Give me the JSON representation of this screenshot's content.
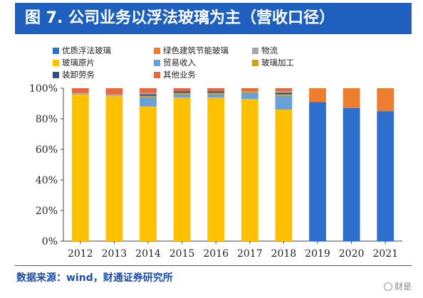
{
  "title": "图 7. 公司业务以浮法玻璃为主（营收口径）",
  "source": "数据来源：wind，财通证券研究所",
  "watermark": "财是",
  "chart_data": {
    "type": "bar",
    "stacked": true,
    "categories": [
      "2012",
      "2013",
      "2014",
      "2015",
      "2016",
      "2017",
      "2018",
      "2019",
      "2020",
      "2021"
    ],
    "ylim": [
      0,
      100
    ],
    "yticks": [
      "0%",
      "20%",
      "40%",
      "60%",
      "80%",
      "100%"
    ],
    "grid": false,
    "legend_position": "top",
    "series": [
      {
        "name": "优质浮法玻璃",
        "color": "#2e6ecc",
        "values": [
          0,
          0,
          0,
          0,
          0,
          0,
          0,
          91,
          87,
          85
        ]
      },
      {
        "name": "玻璃原片",
        "color": "#ffc000",
        "values": [
          96,
          95,
          88,
          94,
          94,
          93,
          86,
          0,
          0,
          0
        ]
      },
      {
        "name": "贸易收入",
        "color": "#6aa0d8",
        "values": [
          0,
          0,
          6,
          2,
          2,
          4,
          9,
          0,
          0,
          0
        ]
      },
      {
        "name": "玻璃加工",
        "color": "#c9a227",
        "values": [
          0,
          0,
          1,
          1,
          1,
          1,
          1,
          0,
          0,
          0
        ]
      },
      {
        "name": "装卸劳务",
        "color": "#2f4f7c",
        "values": [
          0,
          0,
          1,
          1,
          1,
          0,
          1,
          0,
          0,
          0
        ]
      },
      {
        "name": "物流",
        "color": "#a6a6a6",
        "values": [
          1,
          1,
          1,
          0,
          0,
          0,
          1,
          0,
          0,
          0
        ]
      },
      {
        "name": "绿色建筑节能玻璃",
        "color": "#ed7d31",
        "values": [
          0,
          0,
          0,
          0,
          0,
          0,
          0,
          9,
          13,
          15
        ]
      },
      {
        "name": "其他业务",
        "color": "#e8673c",
        "values": [
          3,
          4,
          3,
          2,
          2,
          2,
          2,
          0,
          0,
          0
        ]
      }
    ],
    "legend_order": [
      "优质浮法玻璃",
      "绿色建筑节能玻璃",
      "物流",
      "玻璃原片",
      "贸易收入",
      "玻璃加工",
      "装卸劳务",
      "其他业务"
    ]
  }
}
